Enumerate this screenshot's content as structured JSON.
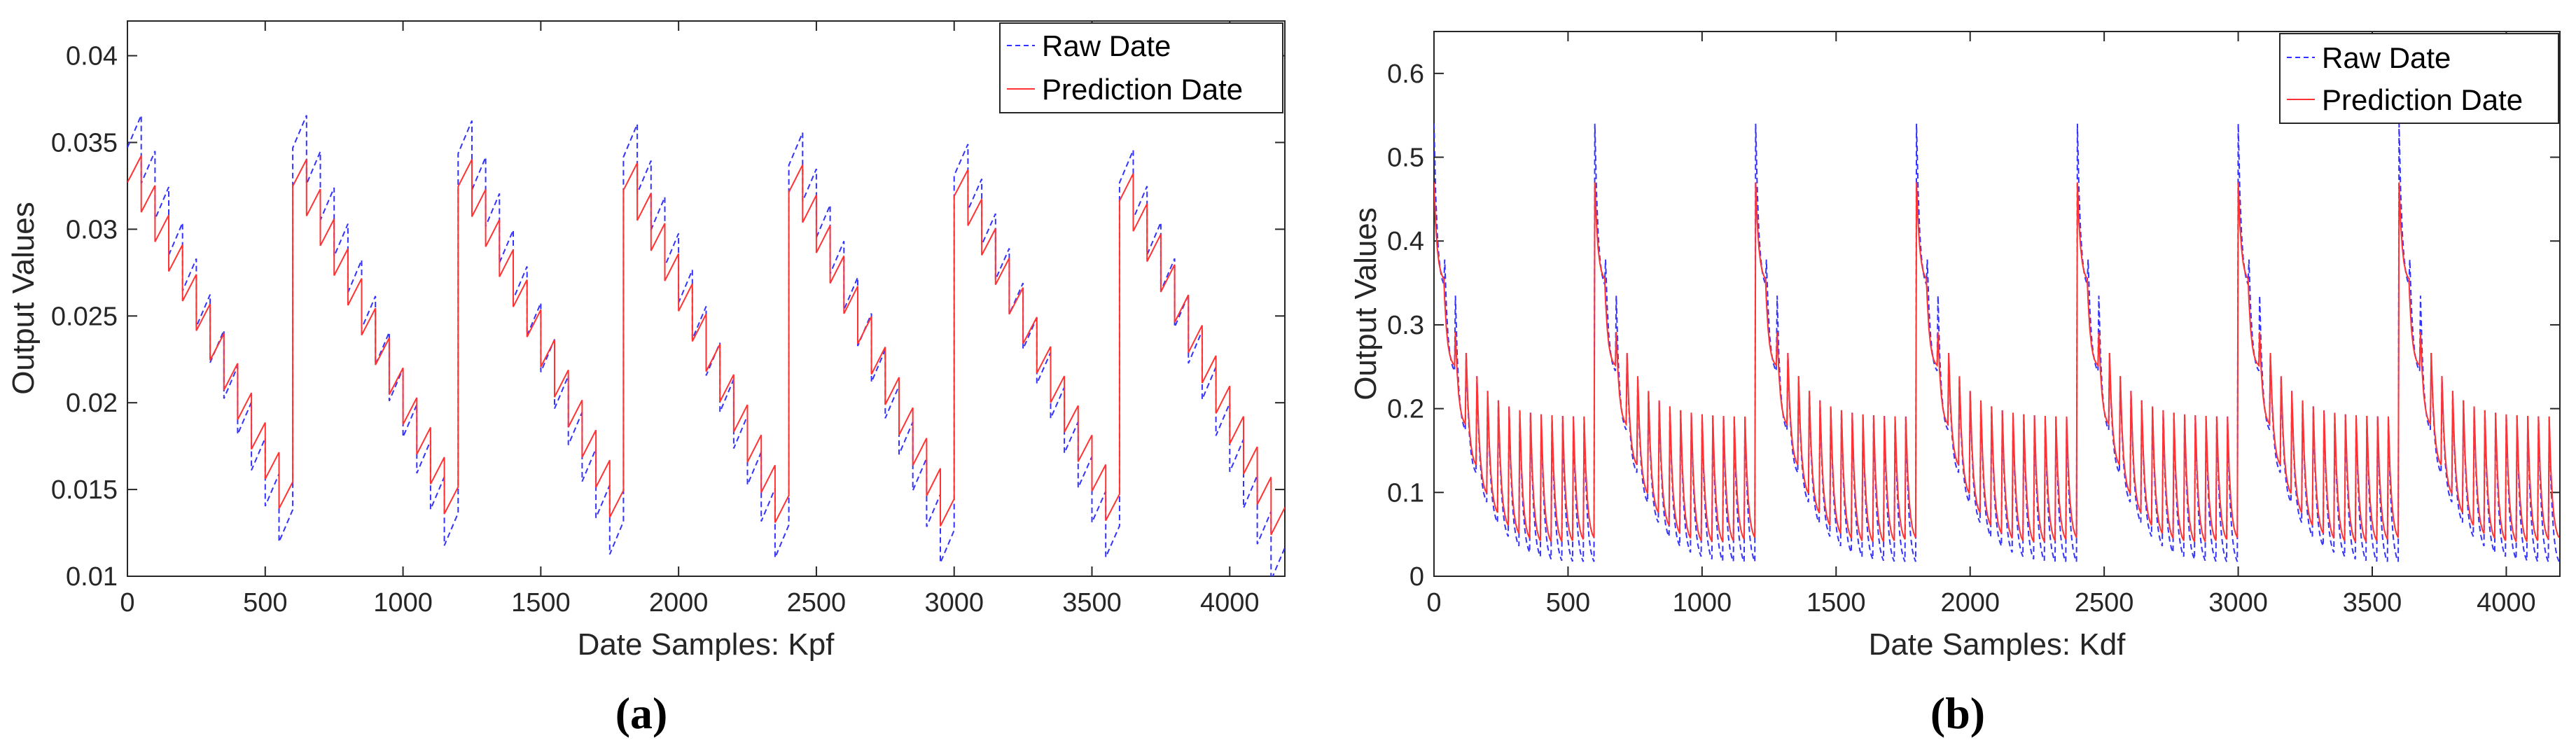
{
  "chart_data": [
    {
      "type": "line",
      "panel_label": "a",
      "xlabel": "Date Samples: Kpf",
      "ylabel": "Output Values",
      "xlim": [
        0,
        4200
      ],
      "ylim": [
        0.01,
        0.042
      ],
      "xticks": [
        0,
        500,
        1000,
        1500,
        2000,
        2500,
        3000,
        3500,
        4000
      ],
      "xtick_labels": [
        "0",
        "500",
        "1000",
        "1500",
        "2000",
        "2500",
        "3000",
        "3500",
        "4000"
      ],
      "yticks": [
        0.01,
        0.015,
        0.02,
        0.025,
        0.03,
        0.035,
        0.04
      ],
      "ytick_labels": [
        "0.01",
        "0.015",
        "0.02",
        "0.025",
        "0.03",
        "0.035",
        "0.04"
      ],
      "legend": [
        "Raw Date",
        "Prediction Date"
      ],
      "legend_position": "top-right",
      "pattern": {
        "cycle_length": 600,
        "cycles": 7,
        "sawtooth_step": 50,
        "raw_start": [
          0.0375,
          0.0375,
          0.0372,
          0.037,
          0.0365,
          0.0358,
          0.0355
        ],
        "raw_end": [
          0.0127,
          0.0125,
          0.012,
          0.0118,
          0.0115,
          0.0118,
          0.0105
        ],
        "pred_start": [
          0.035,
          0.0348,
          0.0348,
          0.0346,
          0.0345,
          0.0342,
          0.034
        ],
        "pred_end": [
          0.0145,
          0.0142,
          0.014,
          0.0137,
          0.0135,
          0.0138,
          0.013
        ]
      },
      "series": [
        {
          "name": "Raw Date",
          "color": "#3333ff",
          "style": "dashed"
        },
        {
          "name": "Prediction Date",
          "color": "#ff3333",
          "style": "solid"
        }
      ]
    },
    {
      "type": "line",
      "panel_label": "b",
      "xlabel": "Date Samples: Kdf",
      "ylabel": "Output Values",
      "xlim": [
        0,
        4200
      ],
      "ylim": [
        0,
        0.65
      ],
      "xticks": [
        0,
        500,
        1000,
        1500,
        2000,
        2500,
        3000,
        3500,
        4000
      ],
      "xtick_labels": [
        "0",
        "500",
        "1000",
        "1500",
        "2000",
        "2500",
        "3000",
        "3500",
        "4000"
      ],
      "yticks": [
        0,
        0.1,
        0.2,
        0.3,
        0.4,
        0.5,
        0.6
      ],
      "ytick_labels": [
        "0",
        "0.1",
        "0.2",
        "0.3",
        "0.4",
        "0.5",
        "0.6"
      ],
      "legend": [
        "Raw Date",
        "Prediction Date"
      ],
      "legend_position": "top-right",
      "pattern": {
        "cycle_length": 600,
        "cycles": 7,
        "sawtooth_step": 40,
        "raw_peak": 0.54,
        "pred_peak": 0.47,
        "raw_floor_start": 0.34,
        "raw_floor_end": 0.01,
        "pred_floor_start": 0.35,
        "pred_floor_end": 0.04,
        "peak_end": 0.19
      },
      "series": [
        {
          "name": "Raw Date",
          "color": "#3333ff",
          "style": "dashed"
        },
        {
          "name": "Prediction Date",
          "color": "#ff3333",
          "style": "solid"
        }
      ]
    }
  ],
  "captions": {
    "a": "(a)",
    "b": "(b)"
  }
}
